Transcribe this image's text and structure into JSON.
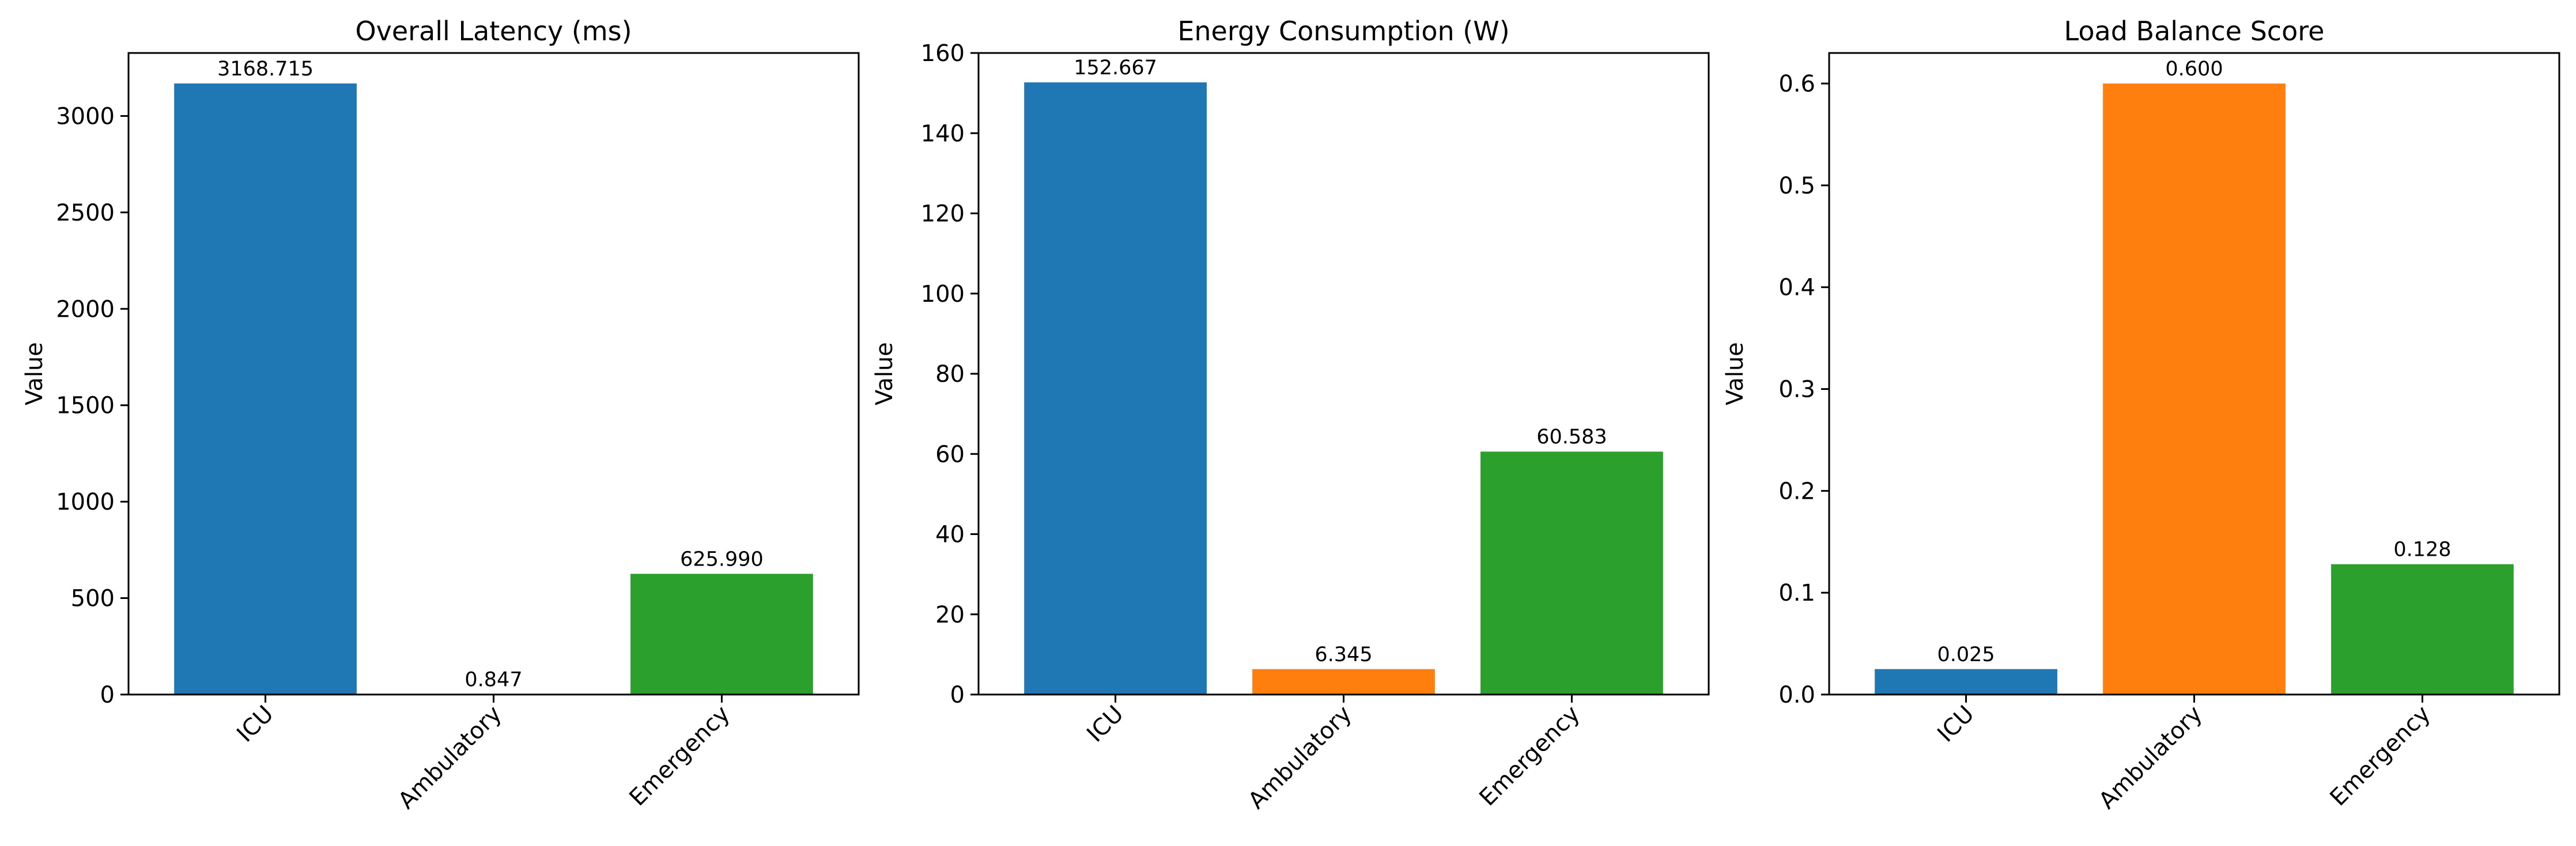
{
  "chart_data": [
    {
      "type": "bar",
      "title": "Overall Latency (ms)",
      "ylabel": "Value",
      "categories": [
        "ICU",
        "Ambulatory",
        "Emergency"
      ],
      "values": [
        3168.715,
        0.847,
        625.99
      ],
      "value_labels": [
        "3168.715",
        "0.847",
        "625.990"
      ],
      "colors": [
        "#1f77b4",
        "#ff7f0e",
        "#2ca02c"
      ],
      "ylim": [
        0,
        3326.65
      ],
      "yticks": [
        0,
        500,
        1000,
        1500,
        2000,
        2500,
        3000
      ],
      "ytick_labels": [
        "0",
        "500",
        "1000",
        "1500",
        "2000",
        "2500",
        "3000"
      ],
      "grid": false
    },
    {
      "type": "bar",
      "title": "Energy Consumption (W)",
      "ylabel": "Value",
      "categories": [
        "ICU",
        "Ambulatory",
        "Emergency"
      ],
      "values": [
        152.667,
        6.345,
        60.583
      ],
      "value_labels": [
        "152.667",
        "6.345",
        "60.583"
      ],
      "colors": [
        "#1f77b4",
        "#ff7f0e",
        "#2ca02c"
      ],
      "ylim": [
        0,
        160
      ],
      "yticks": [
        0,
        20,
        40,
        60,
        80,
        100,
        120,
        140,
        160
      ],
      "ytick_labels": [
        "0",
        "20",
        "40",
        "60",
        "80",
        "100",
        "120",
        "140",
        "160"
      ],
      "grid": false
    },
    {
      "type": "bar",
      "title": "Load Balance Score",
      "ylabel": "Value",
      "categories": [
        "ICU",
        "Ambulatory",
        "Emergency"
      ],
      "values": [
        0.025,
        0.6,
        0.128
      ],
      "value_labels": [
        "0.025",
        "0.600",
        "0.128"
      ],
      "colors": [
        "#1f77b4",
        "#ff7f0e",
        "#2ca02c"
      ],
      "ylim": [
        0,
        0.63
      ],
      "yticks": [
        0,
        0.1,
        0.2,
        0.3,
        0.4,
        0.5,
        0.6
      ],
      "ytick_labels": [
        "0.0",
        "0.1",
        "0.2",
        "0.3",
        "0.4",
        "0.5",
        "0.6"
      ],
      "grid": false
    }
  ]
}
